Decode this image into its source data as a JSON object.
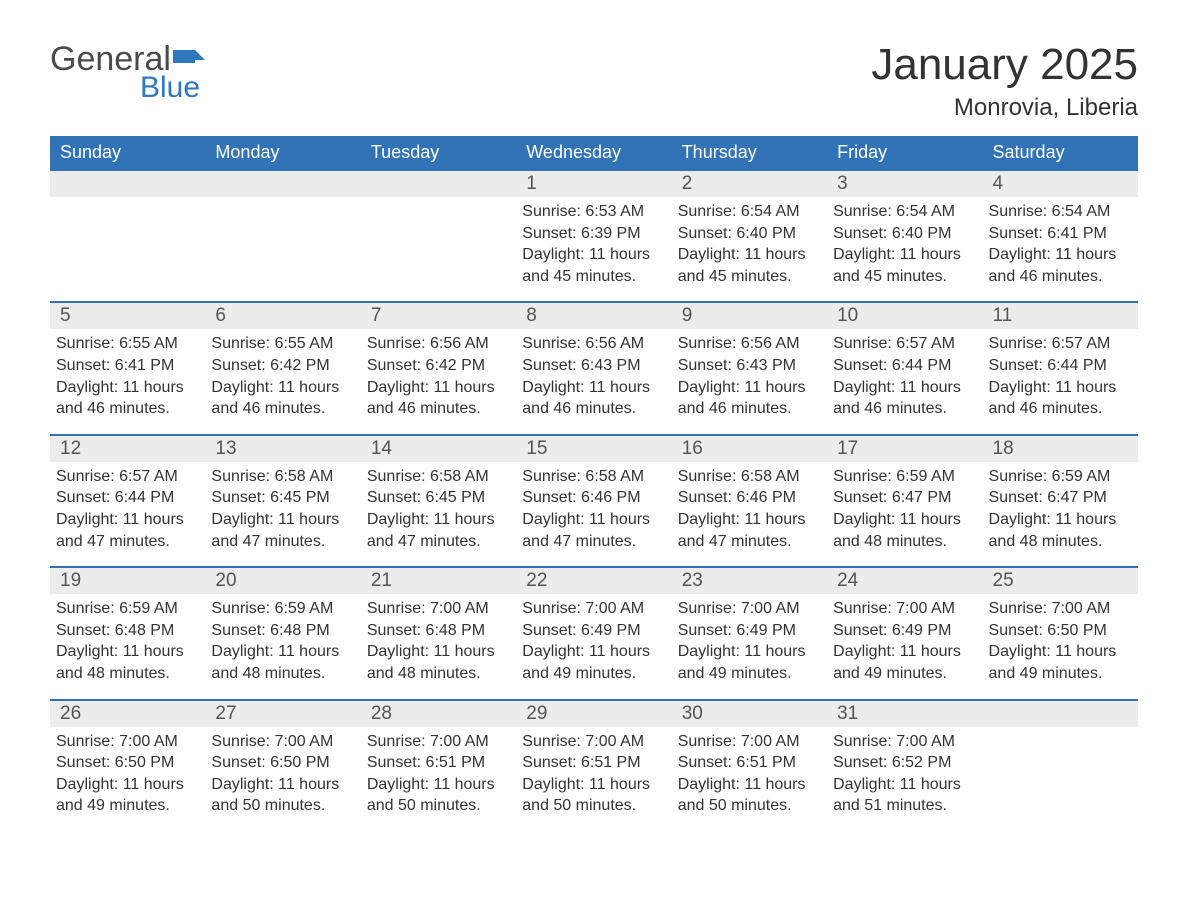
{
  "brand": {
    "word1": "General",
    "word2": "Blue",
    "flag_color": "#2f78bf",
    "text_color": "#4a4a4a"
  },
  "header": {
    "month_title": "January 2025",
    "location": "Monrovia, Liberia"
  },
  "colors": {
    "header_bg": "#3173b6",
    "header_text": "#ffffff",
    "day_num_bg": "#ececec",
    "day_num_text": "#555555",
    "body_text": "#333333",
    "row_border": "#3173b6",
    "page_bg": "#ffffff"
  },
  "typography": {
    "month_title_fontsize": 44,
    "location_fontsize": 24,
    "dayheader_fontsize": 18,
    "daynum_fontsize": 19,
    "body_fontsize": 16
  },
  "day_headers": [
    "Sunday",
    "Monday",
    "Tuesday",
    "Wednesday",
    "Thursday",
    "Friday",
    "Saturday"
  ],
  "weeks": [
    [
      null,
      null,
      null,
      {
        "n": "1",
        "sr": "6:53 AM",
        "ss": "6:39 PM",
        "dl": "11 hours and 45 minutes."
      },
      {
        "n": "2",
        "sr": "6:54 AM",
        "ss": "6:40 PM",
        "dl": "11 hours and 45 minutes."
      },
      {
        "n": "3",
        "sr": "6:54 AM",
        "ss": "6:40 PM",
        "dl": "11 hours and 45 minutes."
      },
      {
        "n": "4",
        "sr": "6:54 AM",
        "ss": "6:41 PM",
        "dl": "11 hours and 46 minutes."
      }
    ],
    [
      {
        "n": "5",
        "sr": "6:55 AM",
        "ss": "6:41 PM",
        "dl": "11 hours and 46 minutes."
      },
      {
        "n": "6",
        "sr": "6:55 AM",
        "ss": "6:42 PM",
        "dl": "11 hours and 46 minutes."
      },
      {
        "n": "7",
        "sr": "6:56 AM",
        "ss": "6:42 PM",
        "dl": "11 hours and 46 minutes."
      },
      {
        "n": "8",
        "sr": "6:56 AM",
        "ss": "6:43 PM",
        "dl": "11 hours and 46 minutes."
      },
      {
        "n": "9",
        "sr": "6:56 AM",
        "ss": "6:43 PM",
        "dl": "11 hours and 46 minutes."
      },
      {
        "n": "10",
        "sr": "6:57 AM",
        "ss": "6:44 PM",
        "dl": "11 hours and 46 minutes."
      },
      {
        "n": "11",
        "sr": "6:57 AM",
        "ss": "6:44 PM",
        "dl": "11 hours and 46 minutes."
      }
    ],
    [
      {
        "n": "12",
        "sr": "6:57 AM",
        "ss": "6:44 PM",
        "dl": "11 hours and 47 minutes."
      },
      {
        "n": "13",
        "sr": "6:58 AM",
        "ss": "6:45 PM",
        "dl": "11 hours and 47 minutes."
      },
      {
        "n": "14",
        "sr": "6:58 AM",
        "ss": "6:45 PM",
        "dl": "11 hours and 47 minutes."
      },
      {
        "n": "15",
        "sr": "6:58 AM",
        "ss": "6:46 PM",
        "dl": "11 hours and 47 minutes."
      },
      {
        "n": "16",
        "sr": "6:58 AM",
        "ss": "6:46 PM",
        "dl": "11 hours and 47 minutes."
      },
      {
        "n": "17",
        "sr": "6:59 AM",
        "ss": "6:47 PM",
        "dl": "11 hours and 48 minutes."
      },
      {
        "n": "18",
        "sr": "6:59 AM",
        "ss": "6:47 PM",
        "dl": "11 hours and 48 minutes."
      }
    ],
    [
      {
        "n": "19",
        "sr": "6:59 AM",
        "ss": "6:48 PM",
        "dl": "11 hours and 48 minutes."
      },
      {
        "n": "20",
        "sr": "6:59 AM",
        "ss": "6:48 PM",
        "dl": "11 hours and 48 minutes."
      },
      {
        "n": "21",
        "sr": "7:00 AM",
        "ss": "6:48 PM",
        "dl": "11 hours and 48 minutes."
      },
      {
        "n": "22",
        "sr": "7:00 AM",
        "ss": "6:49 PM",
        "dl": "11 hours and 49 minutes."
      },
      {
        "n": "23",
        "sr": "7:00 AM",
        "ss": "6:49 PM",
        "dl": "11 hours and 49 minutes."
      },
      {
        "n": "24",
        "sr": "7:00 AM",
        "ss": "6:49 PM",
        "dl": "11 hours and 49 minutes."
      },
      {
        "n": "25",
        "sr": "7:00 AM",
        "ss": "6:50 PM",
        "dl": "11 hours and 49 minutes."
      }
    ],
    [
      {
        "n": "26",
        "sr": "7:00 AM",
        "ss": "6:50 PM",
        "dl": "11 hours and 49 minutes."
      },
      {
        "n": "27",
        "sr": "7:00 AM",
        "ss": "6:50 PM",
        "dl": "11 hours and 50 minutes."
      },
      {
        "n": "28",
        "sr": "7:00 AM",
        "ss": "6:51 PM",
        "dl": "11 hours and 50 minutes."
      },
      {
        "n": "29",
        "sr": "7:00 AM",
        "ss": "6:51 PM",
        "dl": "11 hours and 50 minutes."
      },
      {
        "n": "30",
        "sr": "7:00 AM",
        "ss": "6:51 PM",
        "dl": "11 hours and 50 minutes."
      },
      {
        "n": "31",
        "sr": "7:00 AM",
        "ss": "6:52 PM",
        "dl": "11 hours and 51 minutes."
      },
      null
    ]
  ],
  "labels": {
    "sunrise": "Sunrise:",
    "sunset": "Sunset:",
    "daylight": "Daylight:"
  }
}
